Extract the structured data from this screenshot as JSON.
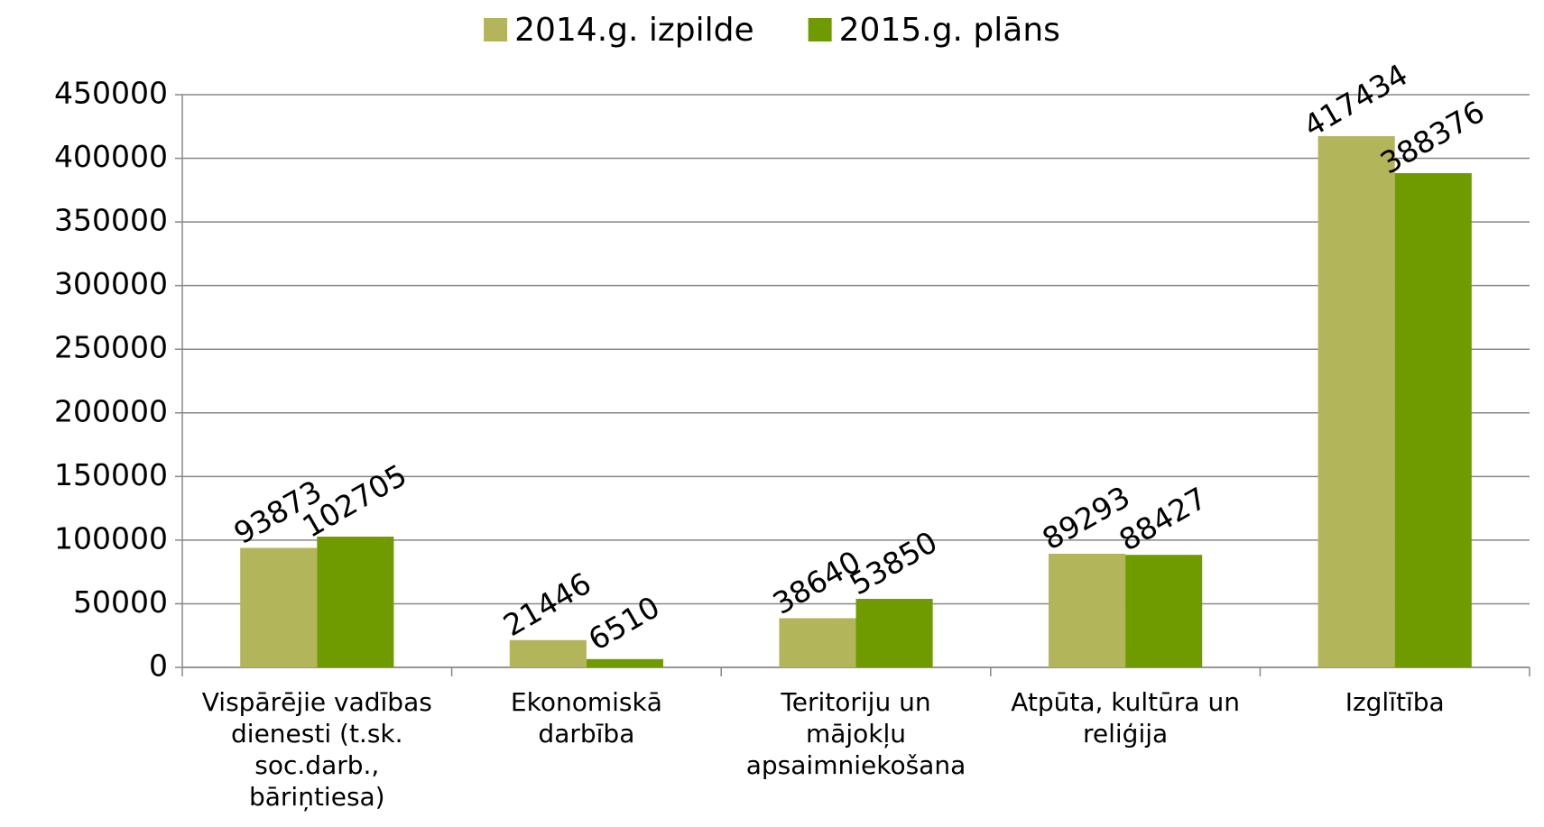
{
  "chart_data": {
    "type": "bar",
    "categories": [
      "Vispārējie vadības\ndienesti (t.sk.\nsoc.darb.,\nbāriņtiesa)",
      "Ekonomiskā\ndarbība",
      "Teritoriju un\nmājokļu\napsaimniekošana",
      "Atpūta, kultūra un\nreliģija",
      "Izglītība"
    ],
    "series": [
      {
        "name": "2014.g. izpilde",
        "color": "#b3b55b",
        "values": [
          93873,
          21446,
          38640,
          89293,
          417434
        ]
      },
      {
        "name": "2015.g. plāns",
        "color": "#709b00",
        "values": [
          102705,
          6510,
          53850,
          88427,
          388376
        ]
      }
    ],
    "ylim": [
      0,
      450000
    ],
    "yticks": [
      0,
      50000,
      100000,
      150000,
      200000,
      250000,
      300000,
      350000,
      400000,
      450000
    ],
    "grid": true,
    "legend": "top"
  }
}
